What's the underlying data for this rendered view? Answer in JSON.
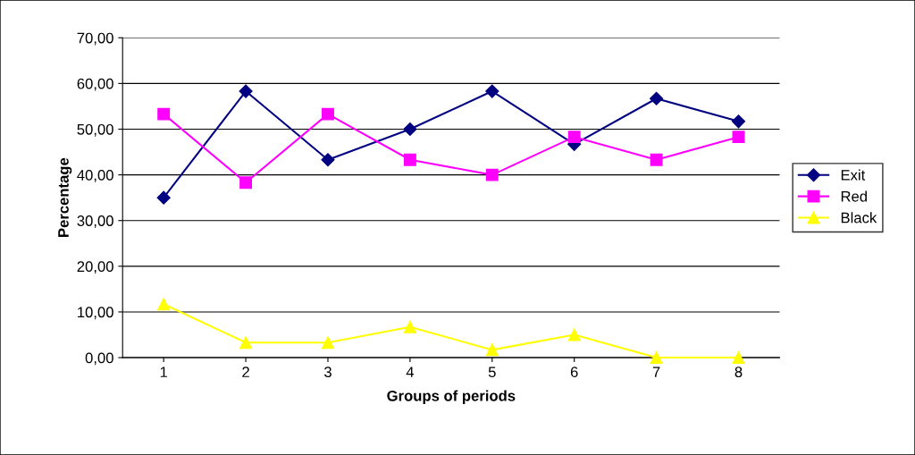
{
  "chart_data": {
    "type": "line",
    "xlabel": "Groups of periods",
    "ylabel": "Percentage",
    "categories": [
      "1",
      "2",
      "3",
      "4",
      "5",
      "6",
      "7",
      "8"
    ],
    "series": [
      {
        "name": "Exit",
        "color": "#000080",
        "marker": "diamond",
        "values": [
          35.0,
          58.3,
          43.3,
          50.0,
          58.3,
          46.7,
          56.7,
          51.7
        ]
      },
      {
        "name": "Red",
        "color": "#ff00ff",
        "marker": "square",
        "values": [
          53.3,
          38.3,
          53.3,
          43.3,
          40.0,
          48.3,
          43.3,
          48.3
        ]
      },
      {
        "name": "Black",
        "color": "#ffff00",
        "marker": "triangle",
        "values": [
          11.7,
          3.3,
          3.3,
          6.7,
          1.7,
          5.0,
          0.0,
          0.0
        ]
      }
    ],
    "ylim": [
      0,
      70
    ],
    "yticks": [
      {
        "value": 0,
        "label": "0,00"
      },
      {
        "value": 10,
        "label": "10,00"
      },
      {
        "value": 20,
        "label": "20,00"
      },
      {
        "value": 30,
        "label": "30,00"
      },
      {
        "value": 40,
        "label": "40,00"
      },
      {
        "value": 50,
        "label": "50,00"
      },
      {
        "value": 60,
        "label": "60,00"
      },
      {
        "value": 70,
        "label": "70,00"
      }
    ],
    "grid": "y",
    "legend": "right",
    "line_style": "solid"
  }
}
